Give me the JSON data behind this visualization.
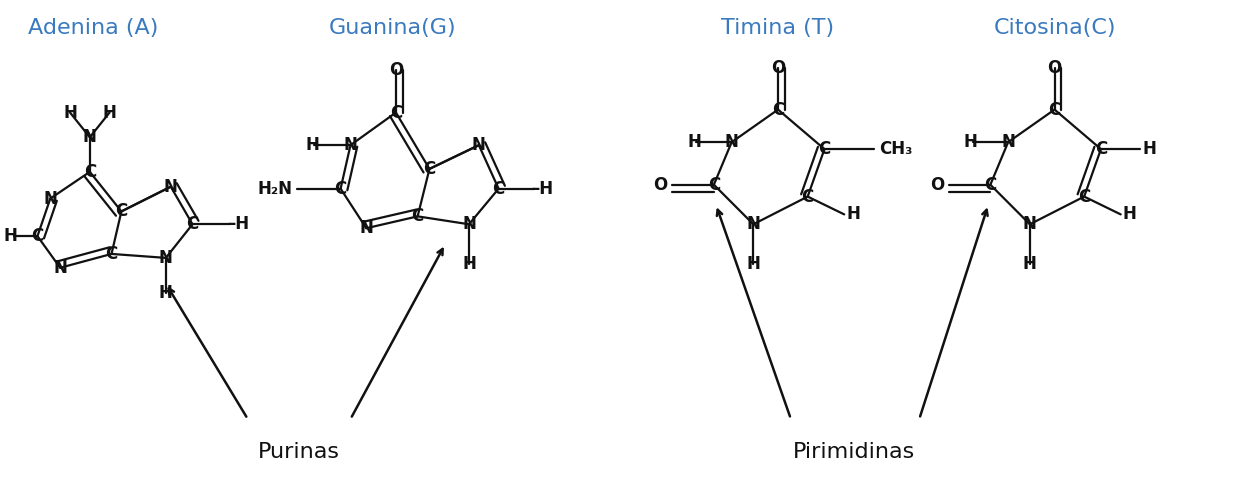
{
  "bg_color": "#ffffff",
  "title_color": "#3a7abf",
  "bond_color": "#111111",
  "label_color": "#111111",
  "arrow_color": "#111111",
  "adenina_title": "Adenina (A)",
  "guanina_title": "Guanina(G)",
  "timina_title": "Timina (T)",
  "citosina_title": "Citosina(C)",
  "purinas_label": "Purinas",
  "pirimidinas_label": "Pirimidinas",
  "font_size_title": 16,
  "font_size_atom": 12,
  "font_size_group": 16
}
